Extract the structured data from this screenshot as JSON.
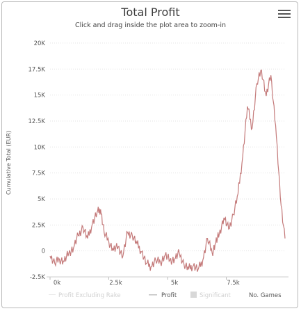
{
  "title": "Total Profit",
  "subtitle": "Click and drag inside the plot area to zoom-in",
  "menu_icon": "hamburger-menu-icon",
  "chart_data": {
    "type": "line",
    "title": "Total Profit",
    "ylabel": "Cumulative Total (EUR)",
    "xlabel": "",
    "x_ticks": [
      "0k",
      "2.5k",
      "5k",
      "7.5k"
    ],
    "y_ticks": [
      "-2.5K",
      "0",
      "2.5K",
      "5K",
      "7.5K",
      "10K",
      "12.5K",
      "15K",
      "17.5K",
      "20K"
    ],
    "xlim": [
      0,
      10000
    ],
    "ylim": [
      -2500,
      21000
    ],
    "legend": [
      "Profit Excluding Rake",
      "Profit",
      "Significant"
    ],
    "legend_position": "bottom",
    "x_axis_suffix": "No. Games",
    "series": [
      {
        "name": "Profit",
        "color": "#c47a7a",
        "x": [
          0,
          200,
          400,
          600,
          800,
          1000,
          1200,
          1400,
          1600,
          1800,
          2000,
          2150,
          2300,
          2500,
          2700,
          2900,
          3100,
          3300,
          3500,
          3700,
          3900,
          4100,
          4300,
          4500,
          4700,
          4900,
          5100,
          5300,
          5500,
          5700,
          5900,
          6100,
          6300,
          6500,
          6700,
          6900,
          7050,
          7200,
          7400,
          7600,
          7800,
          8000,
          8200,
          8400,
          8600,
          8800,
          9000,
          9200,
          9400,
          9600,
          9800,
          10000
        ],
        "y": [
          -500,
          -1200,
          -800,
          -1000,
          -200,
          300,
          1500,
          2300,
          1200,
          2600,
          3700,
          4000,
          1800,
          900,
          100,
          400,
          -500,
          1800,
          1500,
          700,
          -100,
          -1200,
          -1500,
          -900,
          -1100,
          -400,
          -900,
          -800,
          -200,
          -1300,
          -1700,
          -1400,
          -1800,
          -900,
          1200,
          -200,
          800,
          1600,
          3200,
          2100,
          3500,
          5500,
          9100,
          13900,
          11800,
          16100,
          17400,
          14900,
          16900,
          12100,
          5200,
          1200
        ]
      }
    ]
  }
}
